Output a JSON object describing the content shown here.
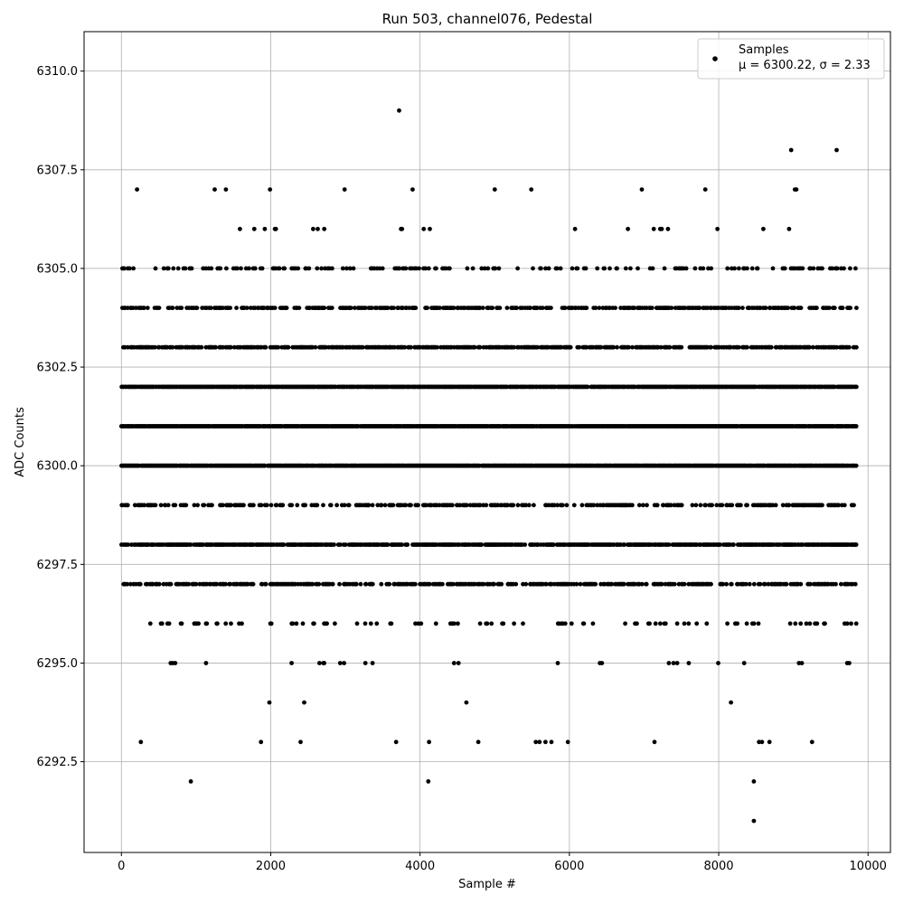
{
  "chart_data": {
    "type": "scatter",
    "title": "Run 503, channel076, Pedestal",
    "xlabel": "Sample #",
    "ylabel": "ADC Counts",
    "xlim": [
      -500,
      10300
    ],
    "ylim": [
      6290.2,
      6311.0
    ],
    "x_ticks": [
      0,
      2000,
      4000,
      6000,
      8000,
      10000
    ],
    "x_tick_labels": [
      "0",
      "2000",
      "4000",
      "6000",
      "8000",
      "10000"
    ],
    "y_ticks": [
      6292.5,
      6295.0,
      6297.5,
      6300.0,
      6302.5,
      6305.0,
      6307.5,
      6310.0
    ],
    "y_tick_labels": [
      "6292.5",
      "6295.0",
      "6297.5",
      "6300.0",
      "6302.5",
      "6305.0",
      "6307.5",
      "6310.0"
    ],
    "grid": true,
    "legend": {
      "position": "top-right",
      "label": "Samples",
      "stats_text": "μ = 6300.22, σ = 2.33"
    },
    "series": [
      {
        "name": "Samples",
        "color": "#000000",
        "x_range": [
          0,
          9840
        ],
        "n_samples": 9841,
        "mean": 6300.22,
        "sigma": 2.33,
        "levels": [
          {
            "y": 6291,
            "x": [
              8470
            ]
          },
          {
            "y": 6292,
            "x": [
              930,
              4110,
              8470
            ]
          },
          {
            "y": 6293,
            "x": [
              260,
              1870,
              2400,
              3680,
              4120,
              4780,
              5550,
              5600,
              5680,
              5760,
              5980,
              7140,
              8540,
              8580,
              8680,
              9250
            ]
          },
          {
            "y": 6308,
            "x": [
              8970,
              9580
            ]
          },
          {
            "y": 6309,
            "x": [
              3720
            ]
          },
          {
            "y": 6307,
            "x": [
              210,
              1250,
              1400,
              1990,
              2990,
              3900,
              5000,
              5490,
              6970,
              7820,
              9020,
              9040
            ]
          }
        ],
        "band_densities": {
          "6294": 0.01,
          "6295": 0.03,
          "6296": 0.12,
          "6297": 0.45,
          "6298": 0.7,
          "6299": 0.35,
          "6300": 0.95,
          "6301": 0.95,
          "6302": 0.9,
          "6303": 0.6,
          "6304": 0.45,
          "6305": 0.2,
          "6306": 0.03
        }
      }
    ]
  }
}
